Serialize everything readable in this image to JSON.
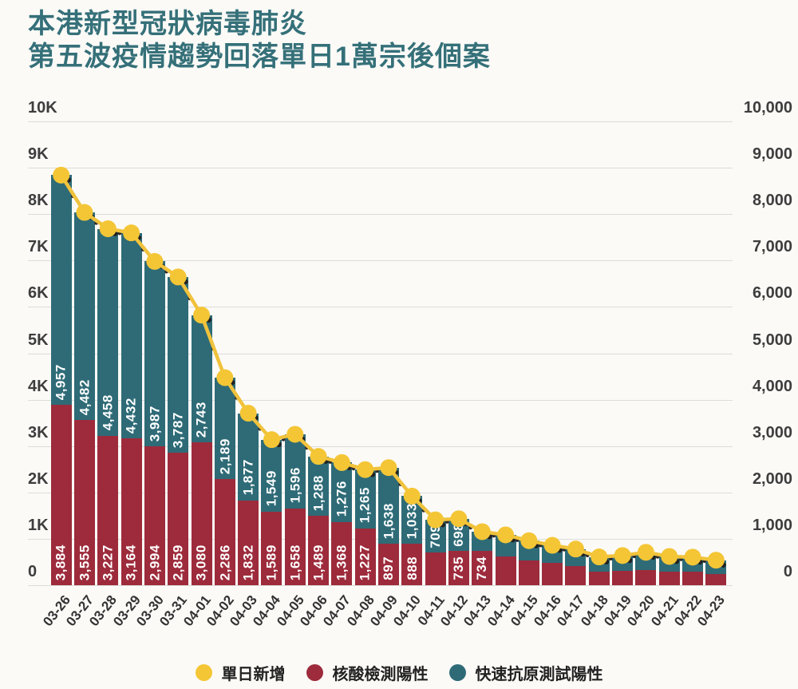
{
  "title": {
    "line1": "本港新型冠狀病毒肺炎",
    "line2": "第五波疫情趨勢回落單日1萬宗後個案"
  },
  "colors": {
    "title": "#357079",
    "pcr_bar": "#9d2b3b",
    "rat_bar": "#2e6b77",
    "daily_line": "#f0c23c",
    "daily_dot": "#f4c636",
    "grid": "#dcdcda",
    "axis_text": "#3d3d3d",
    "background": "#fbfaf7"
  },
  "y_axis": {
    "left_labels": [
      "10K",
      "9K",
      "8K",
      "7K",
      "6K",
      "5K",
      "4K",
      "3K",
      "2K",
      "1K",
      "0"
    ],
    "right_labels": [
      "10,000",
      "9,000",
      "8,000",
      "7,000",
      "6,000",
      "5,000",
      "4,000",
      "3,000",
      "2,000",
      "1,000",
      "0"
    ]
  },
  "legend": [
    {
      "label": "單日新增",
      "color": "#f4c636"
    },
    {
      "label": "核酸檢測陽性",
      "color": "#9d2b3b"
    },
    {
      "label": "快速抗原測試陽性",
      "color": "#2e6b77"
    }
  ],
  "chart_data": {
    "type": "bar",
    "stacked": true,
    "title": "本港新型冠狀病毒肺炎 第五波疫情趨勢回落單日1萬宗後個案",
    "categories": [
      "03-26",
      "03-27",
      "03-28",
      "03-29",
      "03-30",
      "03-31",
      "04-01",
      "04-02",
      "04-03",
      "04-04",
      "04-05",
      "04-06",
      "04-07",
      "04-08",
      "04-09",
      "04-10",
      "04-11",
      "04-12",
      "04-13",
      "04-14",
      "04-15",
      "04-16",
      "04-17",
      "04-18",
      "04-19",
      "04-20",
      "04-21",
      "04-22",
      "04-23"
    ],
    "ylim": [
      0,
      10000
    ],
    "grid": true,
    "legend_position": "bottom",
    "series": [
      {
        "name": "核酸檢測陽性",
        "type": "bar",
        "color": "#9d2b3b",
        "values": [
          3884,
          3555,
          3227,
          3164,
          2994,
          2859,
          3080,
          2286,
          1832,
          1589,
          1658,
          1489,
          1368,
          1227,
          897,
          888,
          700,
          735,
          734,
          620,
          540,
          480,
          410,
          300,
          310,
          330,
          300,
          285,
          240
        ],
        "labels": [
          "3,884",
          "3,555",
          "3,227",
          "3,164",
          "2,994",
          "2,859",
          "3,080",
          "2,286",
          "1,832",
          "1,589",
          "1,658",
          "1,489",
          "1,368",
          "1,227",
          "897",
          "888",
          null,
          "735",
          "734",
          null,
          null,
          null,
          null,
          null,
          null,
          null,
          null,
          null,
          null
        ]
      },
      {
        "name": "快速抗原測試陽性",
        "type": "bar",
        "color": "#2e6b77",
        "values": [
          4957,
          4482,
          4458,
          4432,
          3987,
          3787,
          2743,
          2189,
          1877,
          1549,
          1596,
          1288,
          1276,
          1265,
          1638,
          1033,
          709,
          698,
          420,
          465,
          420,
          380,
          370,
          310,
          330,
          380,
          320,
          320,
          300
        ],
        "labels": [
          "4,957",
          "4,482",
          "4,458",
          "4,432",
          "3,987",
          "3,787",
          "2,743",
          "2,189",
          "1,877",
          "1,549",
          "1,596",
          "1,288",
          "1,276",
          "1,265",
          "1,638",
          "1,033",
          "709",
          "698",
          null,
          null,
          null,
          null,
          null,
          null,
          null,
          null,
          null,
          null,
          null
        ]
      },
      {
        "name": "單日新增",
        "type": "line",
        "color": "#f4c636",
        "values": [
          8841,
          8037,
          7685,
          7596,
          6981,
          6646,
          5823,
          4475,
          3709,
          3138,
          3254,
          2777,
          2644,
          2492,
          2535,
          1921,
          1409,
          1433,
          1154,
          1085,
          960,
          860,
          780,
          610,
          640,
          710,
          620,
          605,
          540
        ]
      }
    ]
  }
}
